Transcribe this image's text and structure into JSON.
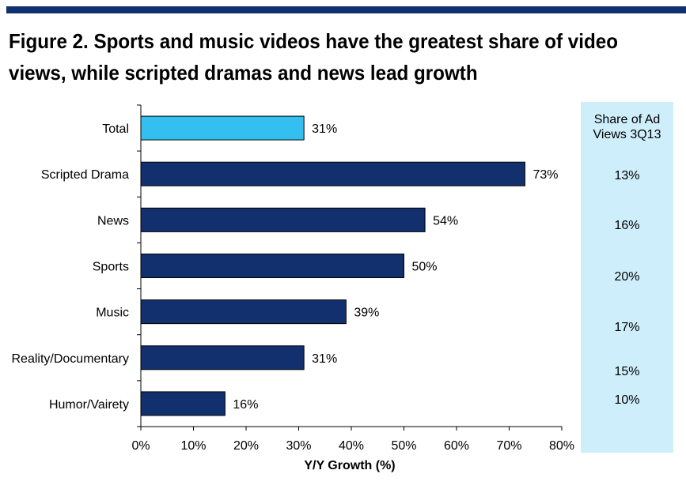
{
  "title_line1": "Figure 2. Sports and music videos have the greatest share of video",
  "title_line2": "views, while scripted dramas and news lead growth",
  "share_panel": {
    "header_line1": "Share of Ad",
    "header_line2": "Views 3Q13",
    "values": [
      "13%",
      "16%",
      "20%",
      "17%",
      "15%",
      "10%"
    ]
  },
  "colors": {
    "rule": "#10306f",
    "bar": "#13306e",
    "highlight_bar": "#33c0f0",
    "panel": "#cdeefa"
  },
  "chart_data": {
    "type": "bar",
    "orientation": "horizontal",
    "categories": [
      "Total",
      "Scripted Drama",
      "News",
      "Sports",
      "Music",
      "Reality/Documentary",
      "Humor/Vairety"
    ],
    "values": [
      31,
      73,
      54,
      50,
      39,
      31,
      16
    ],
    "data_labels": [
      "31%",
      "73%",
      "54%",
      "50%",
      "39%",
      "31%",
      "16%"
    ],
    "highlighted_category": "Total",
    "xlabel": "Y/Y Growth (%)",
    "xlim": [
      0,
      80
    ],
    "xticks": [
      0,
      10,
      20,
      30,
      40,
      50,
      60,
      70,
      80
    ],
    "xtick_labels": [
      "0%",
      "10%",
      "20%",
      "30%",
      "40%",
      "50%",
      "60%",
      "70%",
      "80%"
    ],
    "grid": false
  }
}
